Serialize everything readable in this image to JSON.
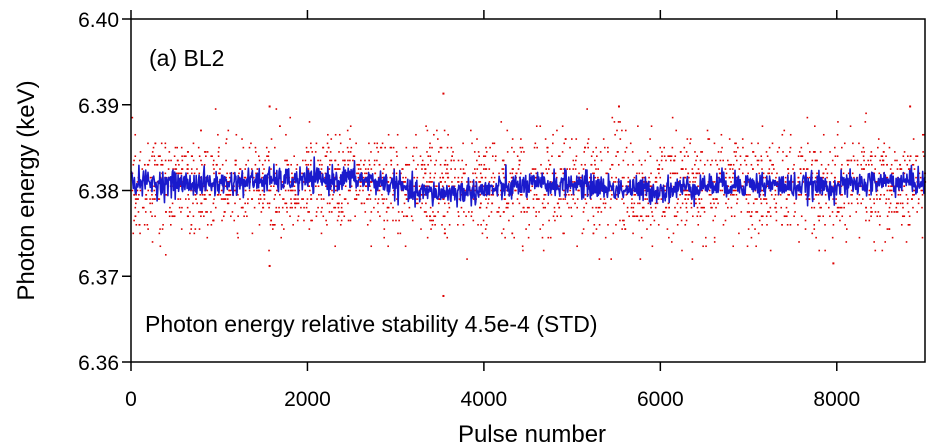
{
  "chart_data": {
    "type": "scatter",
    "xlabel": "Pulse number",
    "ylabel": "Photon energy (keV)",
    "xlim": [
      0,
      9000
    ],
    "ylim": [
      6.36,
      6.4
    ],
    "xticks": [
      0,
      2000,
      4000,
      6000,
      8000
    ],
    "xtick_labels": [
      "0",
      "2000",
      "4000",
      "6000",
      "8000"
    ],
    "yticks": [
      6.36,
      6.37,
      6.38,
      6.39,
      6.4
    ],
    "ytick_labels": [
      "6.36",
      "6.37",
      "6.38",
      "6.39",
      "6.40"
    ],
    "grid": false,
    "annotations": {
      "panel_label": "(a) BL2",
      "stability_text": "Photon energy relative stability 4.5e-4 (STD)"
    },
    "series": [
      {
        "kind": "scatter",
        "color": "#dd0000",
        "description_points": "shot-to-shot photon energy values, quantized levels",
        "level_step": 0.0005,
        "center": 6.3805,
        "std": 0.0029,
        "outliers": [
          {
            "x": 3530,
            "y": 6.3913
          },
          {
            "x": 3530,
            "y": 6.3677
          },
          {
            "x": 1560,
            "y": 6.3898
          },
          {
            "x": 1560,
            "y": 6.3712
          },
          {
            "x": 7950,
            "y": 6.3715
          },
          {
            "x": 5520,
            "y": 6.3898
          },
          {
            "x": 8820,
            "y": 6.3898
          }
        ]
      },
      {
        "kind": "line",
        "color": "#1a1acc",
        "description": "running average of photon energy",
        "x": [
          0,
          500,
          1000,
          1500,
          2000,
          2500,
          3000,
          3200,
          3500,
          4000,
          4500,
          5000,
          5500,
          6000,
          6500,
          7000,
          7500,
          8000,
          8500,
          9000
        ],
        "y": [
          6.381,
          6.3808,
          6.3808,
          6.3812,
          6.3812,
          6.3814,
          6.3807,
          6.3797,
          6.3797,
          6.38,
          6.3806,
          6.3808,
          6.3802,
          6.38,
          6.3806,
          6.3808,
          6.3805,
          6.3805,
          6.381,
          6.381
        ]
      }
    ]
  }
}
